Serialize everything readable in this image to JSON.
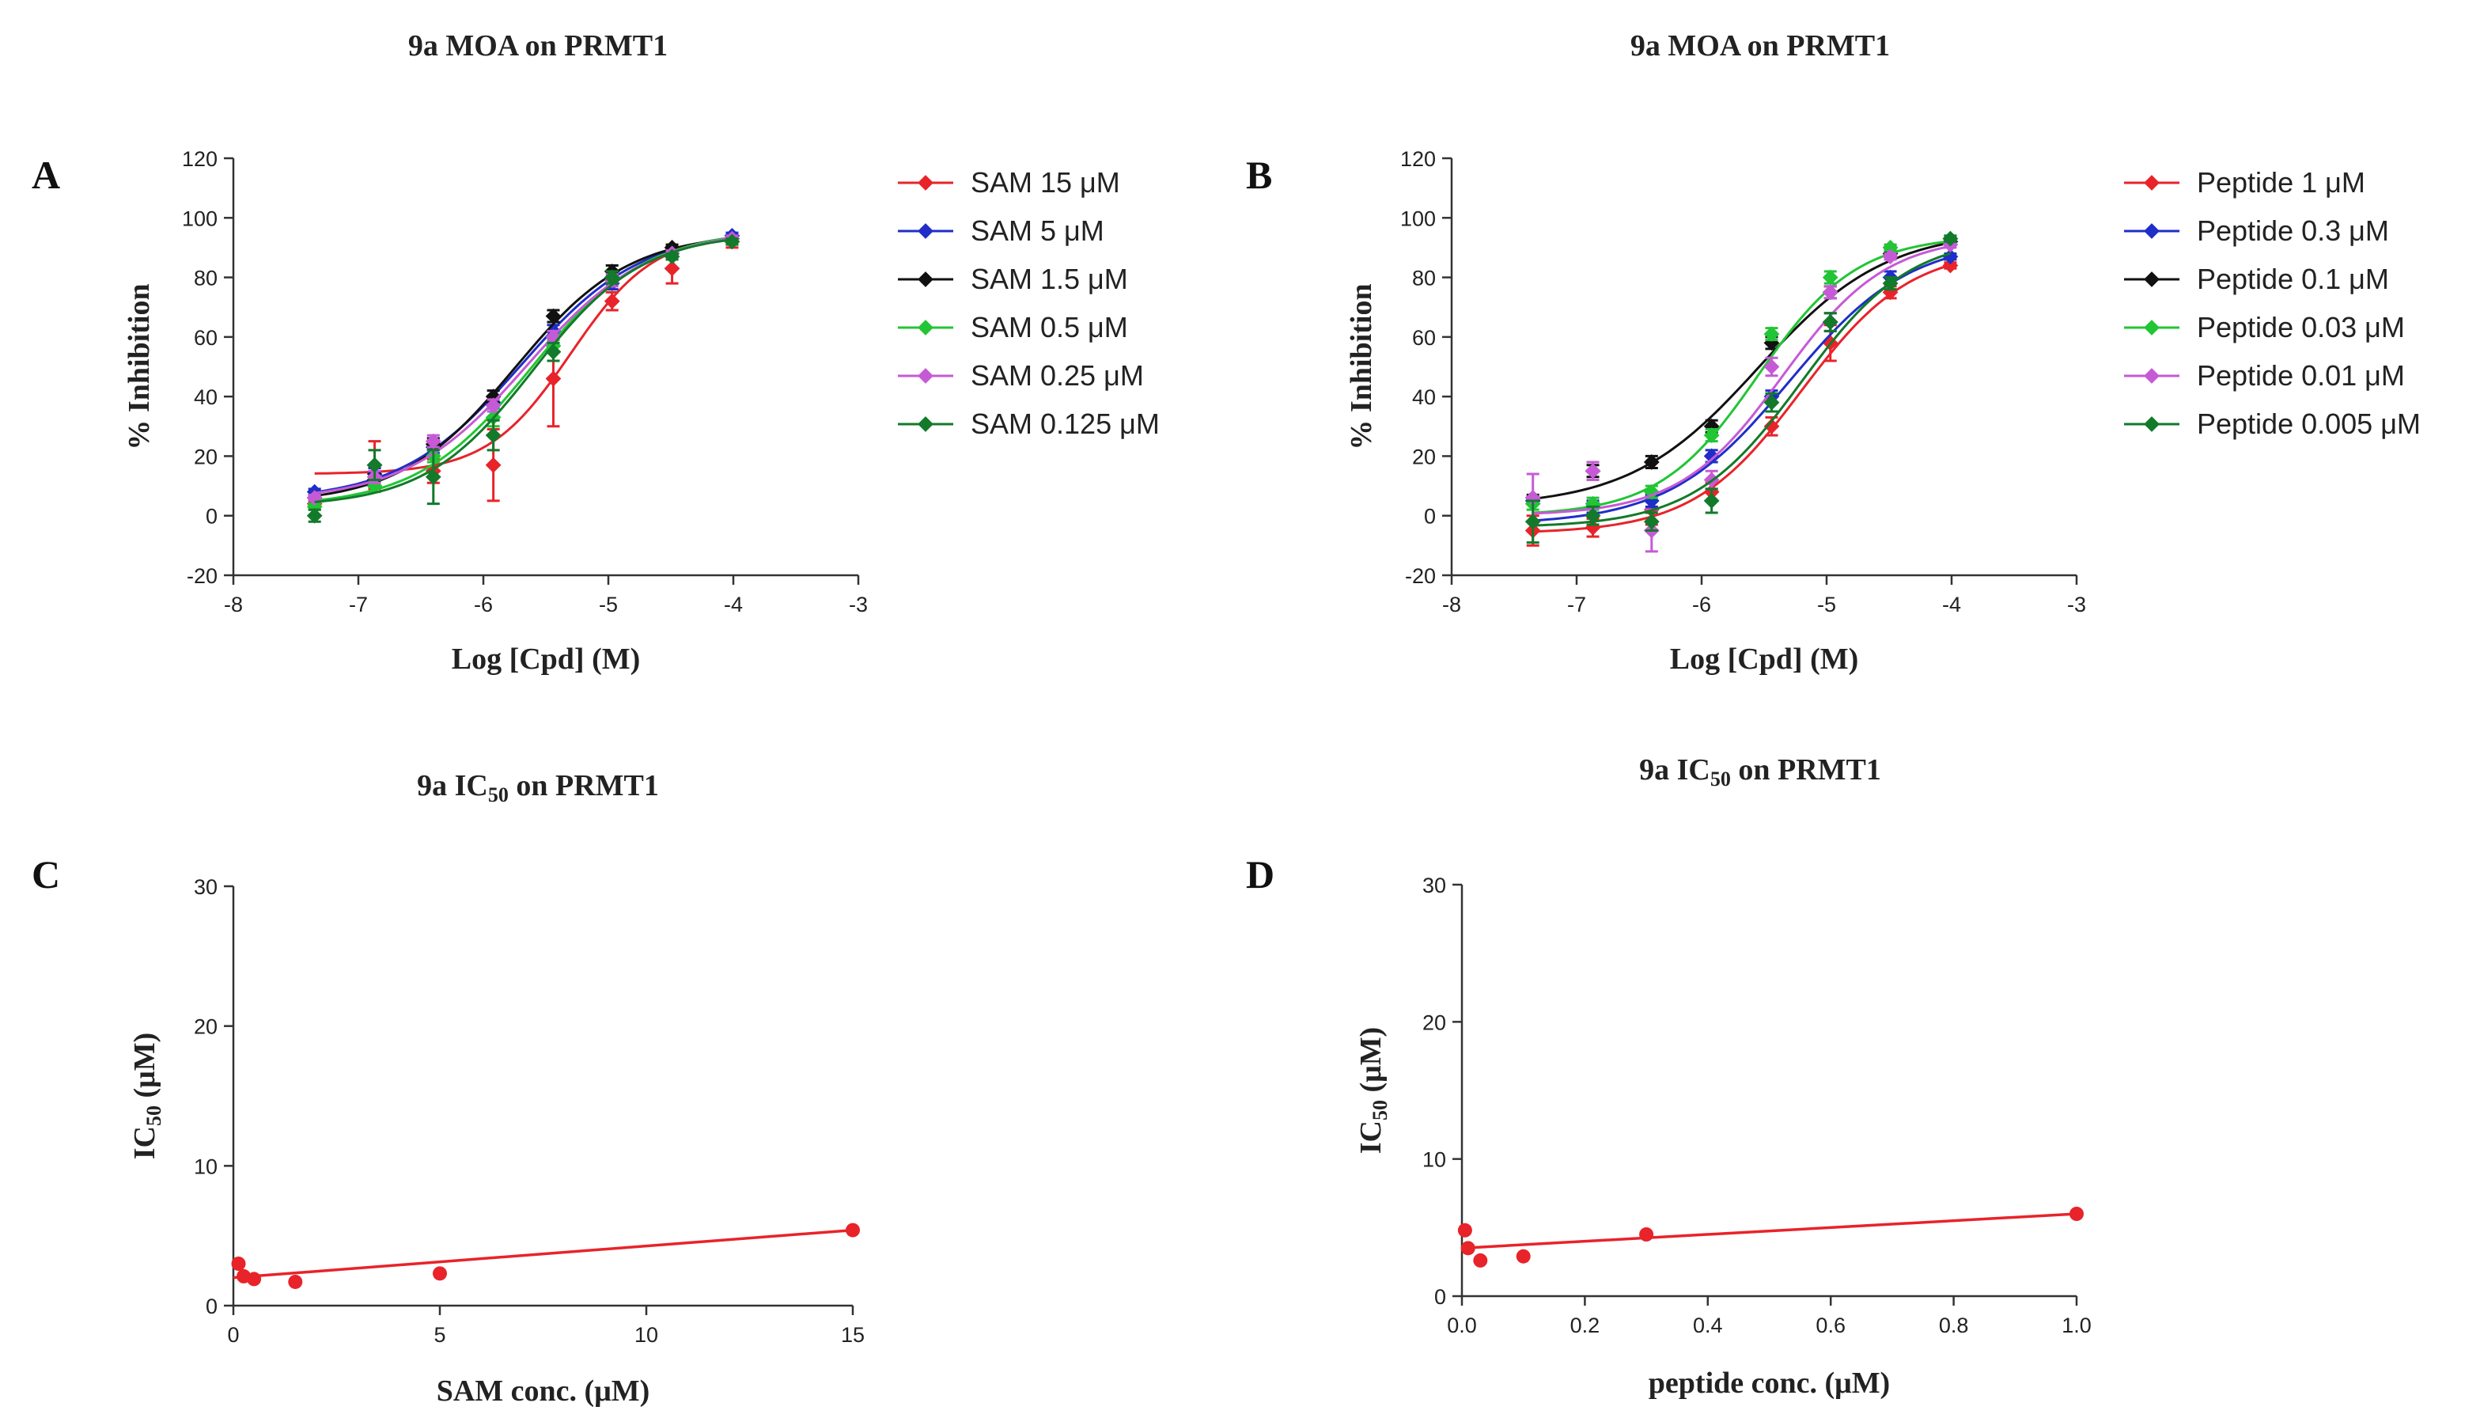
{
  "chart_data": [
    {
      "panel": "A",
      "type": "line",
      "title": "9a MOA on PRMT1",
      "xlabel": "Log [Cpd] (M)",
      "ylabel": "% Inhibition",
      "xlim": [
        -8,
        -3
      ],
      "ylim": [
        -20,
        120
      ],
      "xticks": [
        -8,
        -7,
        -6,
        -5,
        -4,
        -3
      ],
      "yticks": [
        -20,
        0,
        20,
        40,
        60,
        80,
        100,
        120
      ],
      "x": [
        -7.35,
        -6.87,
        -6.4,
        -5.92,
        -5.44,
        -4.97,
        -4.49,
        -4.01
      ],
      "series": [
        {
          "name": "SAM 15 μM",
          "color": "#e8232a",
          "values": [
            4,
            17,
            15,
            17,
            46,
            72,
            83,
            92
          ],
          "errors": [
            2,
            8,
            4,
            12,
            16,
            3,
            5,
            2
          ],
          "fit": {
            "bottom": 14,
            "top": 95,
            "logEC50": -5.3,
            "hill": 1.3
          }
        },
        {
          "name": "SAM 5 μM",
          "color": "#1f2ec8",
          "values": [
            8,
            14,
            23,
            38,
            62,
            78,
            89,
            94
          ],
          "errors": [
            1,
            2,
            2,
            2,
            2,
            2,
            1,
            1
          ],
          "fit": {
            "bottom": 5,
            "top": 96,
            "logEC50": -5.7,
            "hill": 0.9
          }
        },
        {
          "name": "SAM 1.5 μM",
          "color": "#111111",
          "values": [
            6,
            12,
            24,
            40,
            67,
            82,
            90,
            93
          ],
          "errors": [
            1,
            2,
            2,
            2,
            2,
            2,
            1,
            1
          ],
          "fit": {
            "bottom": 4,
            "top": 95,
            "logEC50": -5.75,
            "hill": 0.95
          }
        },
        {
          "name": "SAM 0.5 μM",
          "color": "#22c534",
          "values": [
            3,
            10,
            20,
            33,
            57,
            80,
            88,
            93
          ],
          "errors": [
            1,
            2,
            2,
            3,
            2,
            2,
            1,
            1
          ],
          "fit": {
            "bottom": 3,
            "top": 96,
            "logEC50": -5.62,
            "hill": 0.95
          }
        },
        {
          "name": "SAM 0.25 μM",
          "color": "#c65ad6",
          "values": [
            6,
            13,
            25,
            37,
            60,
            79,
            88,
            93
          ],
          "errors": [
            1,
            2,
            2,
            2,
            2,
            2,
            1,
            1
          ],
          "fit": {
            "bottom": 5,
            "top": 96,
            "logEC50": -5.65,
            "hill": 0.9
          }
        },
        {
          "name": "SAM 0.125 μM",
          "color": "#127a2a",
          "values": [
            0,
            17,
            13,
            27,
            55,
            80,
            87,
            92
          ],
          "errors": [
            2,
            5,
            9,
            5,
            3,
            2,
            1,
            1
          ],
          "fit": {
            "bottom": 3,
            "top": 95,
            "logEC50": -5.6,
            "hill": 1.0
          }
        }
      ]
    },
    {
      "panel": "B",
      "type": "line",
      "title": "9a MOA on PRMT1",
      "xlabel": "Log [Cpd] (M)",
      "ylabel": "% Inhibition",
      "xlim": [
        -8,
        -3
      ],
      "ylim": [
        -20,
        120
      ],
      "xticks": [
        -8,
        -7,
        -6,
        -5,
        -4,
        -3
      ],
      "yticks": [
        -20,
        0,
        20,
        40,
        60,
        80,
        100,
        120
      ],
      "x": [
        -7.35,
        -6.87,
        -6.4,
        -5.92,
        -5.44,
        -4.97,
        -4.49,
        -4.01
      ],
      "series": [
        {
          "name": "Peptide 1 μM",
          "color": "#e8232a",
          "values": [
            -5,
            -4,
            2,
            8,
            30,
            58,
            75,
            84
          ],
          "errors": [
            5,
            3,
            5,
            3,
            3,
            6,
            2,
            1
          ],
          "fit": {
            "bottom": -6,
            "top": 90,
            "logEC50": -5.2,
            "hill": 1.0
          }
        },
        {
          "name": "Peptide 0.3 μM",
          "color": "#1f2ec8",
          "values": [
            5,
            3,
            5,
            20,
            40,
            65,
            80,
            87
          ],
          "errors": [
            1,
            2,
            2,
            2,
            2,
            3,
            2,
            1
          ],
          "fit": {
            "bottom": -3,
            "top": 93,
            "logEC50": -5.3,
            "hill": 0.9
          }
        },
        {
          "name": "Peptide 0.1 μM",
          "color": "#111111",
          "values": [
            6,
            15,
            18,
            30,
            58,
            75,
            88,
            92
          ],
          "errors": [
            1,
            2,
            2,
            2,
            2,
            2,
            1,
            1
          ],
          "fit": {
            "bottom": 3,
            "top": 96,
            "logEC50": -5.55,
            "hill": 0.85
          }
        },
        {
          "name": "Peptide 0.03 μM",
          "color": "#22c534",
          "values": [
            4,
            4,
            8,
            27,
            61,
            80,
            90,
            93
          ],
          "errors": [
            2,
            2,
            2,
            2,
            2,
            2,
            1,
            1
          ],
          "fit": {
            "bottom": 0,
            "top": 94,
            "logEC50": -5.55,
            "hill": 1.1
          }
        },
        {
          "name": "Peptide 0.01 μM",
          "color": "#c65ad6",
          "values": [
            6,
            15,
            -5,
            12,
            50,
            75,
            87,
            91
          ],
          "errors": [
            8,
            3,
            7,
            3,
            3,
            2,
            1,
            1
          ],
          "fit": {
            "bottom": 0,
            "top": 94,
            "logEC50": -5.35,
            "hill": 1.05
          }
        },
        {
          "name": "Peptide 0.005 μM",
          "color": "#127a2a",
          "values": [
            -2,
            0,
            -2,
            5,
            38,
            65,
            78,
            93
          ],
          "errors": [
            7,
            3,
            3,
            4,
            3,
            3,
            2,
            1
          ],
          "fit": {
            "bottom": -4,
            "top": 94,
            "logEC50": -5.2,
            "hill": 1.0
          }
        }
      ]
    },
    {
      "panel": "C",
      "type": "scatter",
      "title": "9a IC",
      "title_sub": "50",
      "title_rest": " on PRMT1",
      "xlabel": "SAM conc. (μM)",
      "ylabel": "IC",
      "ylabel_sub": "50",
      "ylabel_rest": " (μM)",
      "xlim": [
        0,
        15
      ],
      "ylim": [
        0,
        30
      ],
      "xticks": [
        0,
        5,
        10,
        15
      ],
      "yticks": [
        0,
        10,
        20,
        30
      ],
      "color": "#e8232a",
      "x": [
        0.125,
        0.25,
        0.5,
        1.5,
        5,
        15
      ],
      "y": [
        3.0,
        2.1,
        1.9,
        1.7,
        2.3,
        5.4
      ],
      "fit_line": {
        "x": [
          0,
          15
        ],
        "y": [
          2.0,
          5.4
        ]
      }
    },
    {
      "panel": "D",
      "type": "scatter",
      "title": "9a IC",
      "title_sub": "50",
      "title_rest": " on PRMT1",
      "xlabel": "peptide conc. (μM)",
      "ylabel": "IC",
      "ylabel_sub": "50",
      "ylabel_rest": " (μM)",
      "xlim": [
        0,
        1.0
      ],
      "ylim": [
        0,
        30
      ],
      "xticks": [
        0.0,
        0.2,
        0.4,
        0.6,
        0.8,
        1.0
      ],
      "xtick_labels": [
        "0.0",
        "0.2",
        "0.4",
        "0.6",
        "0.8",
        "1.0"
      ],
      "yticks": [
        0,
        10,
        20,
        30
      ],
      "color": "#e8232a",
      "x": [
        0.005,
        0.01,
        0.03,
        0.1,
        0.3,
        1.0
      ],
      "y": [
        4.8,
        3.5,
        2.6,
        2.9,
        4.5,
        6.0
      ],
      "fit_line": {
        "x": [
          0,
          1.0
        ],
        "y": [
          3.5,
          6.0
        ]
      }
    }
  ]
}
